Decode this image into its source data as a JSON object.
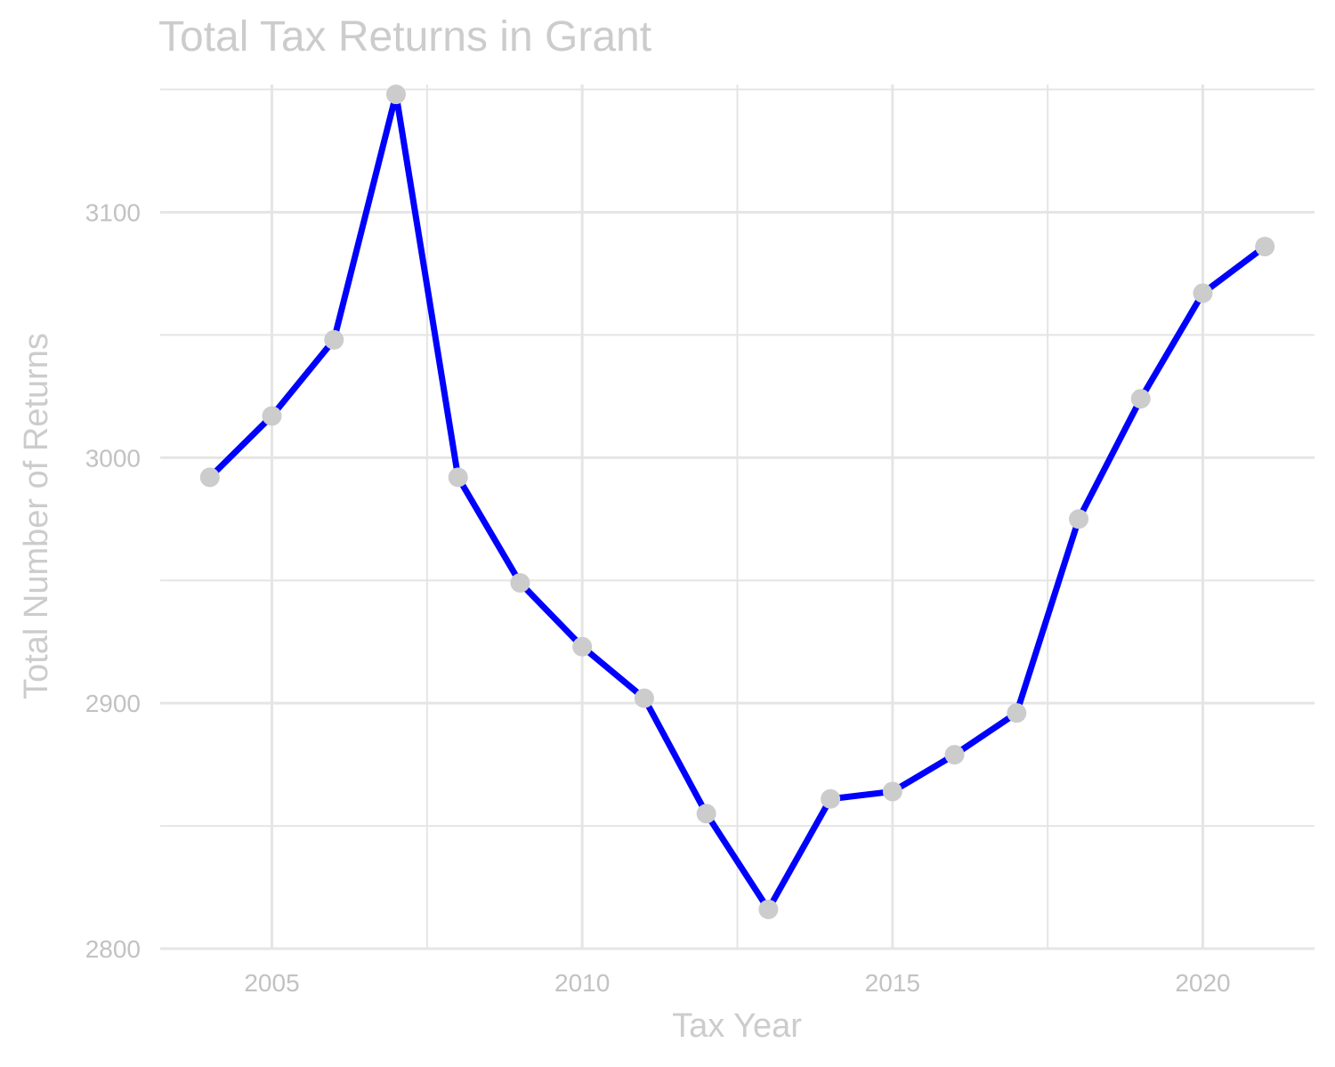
{
  "chart_data": {
    "type": "line",
    "title": "Total Tax Returns in Grant",
    "xlabel": "Tax Year",
    "ylabel": "Total Number of Returns",
    "x": [
      2004,
      2005,
      2006,
      2007,
      2008,
      2009,
      2010,
      2011,
      2012,
      2013,
      2014,
      2015,
      2016,
      2017,
      2018,
      2019,
      2020,
      2021
    ],
    "series": [
      {
        "values": [
          2992,
          3017,
          3048,
          3148,
          2992,
          2949,
          2923,
          2902,
          2855,
          2816,
          2861,
          2864,
          2879,
          2896,
          2975,
          3024,
          3067,
          3086
        ]
      }
    ],
    "xlim": [
      2003.2,
      2021.8
    ],
    "ylim": [
      2800,
      3152
    ],
    "x_ticks": [
      "2005",
      "2010",
      "2015",
      "2020"
    ],
    "y_ticks": [
      "2800",
      "2900",
      "3000",
      "3100"
    ],
    "grid": true,
    "colors": {
      "line": "#0000ff",
      "point": "#cccccc",
      "grid": "#e5e5e5",
      "text": "#cccccc"
    }
  }
}
